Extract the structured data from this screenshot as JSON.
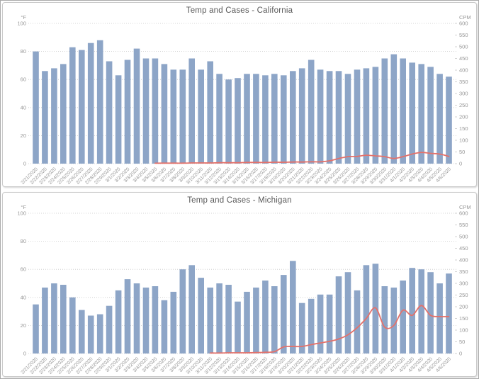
{
  "colors": {
    "bar": "#8da5c7",
    "line": "#e4716a",
    "grid": "#c8c8c8",
    "title": "#595959",
    "axis_label": "#969696",
    "panel_border": "#c9c9c9",
    "background": "#ffffff"
  },
  "chart_data": [
    {
      "type": "bar",
      "title": "Temp and Cases - California",
      "categories": [
        "2/21/2020",
        "2/22/2020",
        "2/23/2020",
        "2/24/2020",
        "2/25/2020",
        "2/26/2020",
        "2/27/2020",
        "2/28/2020",
        "2/29/2020",
        "3/1/2020",
        "3/2/2020",
        "3/3/2020",
        "3/4/2020",
        "3/5/2020",
        "3/6/2020",
        "3/7/2020",
        "3/8/2020",
        "3/9/2020",
        "3/10/2020",
        "3/11/2020",
        "3/12/2020",
        "3/13/2020",
        "3/14/2020",
        "3/15/2020",
        "3/16/2020",
        "3/17/2020",
        "3/18/2020",
        "3/19/2020",
        "3/20/2020",
        "3/21/2020",
        "3/22/2020",
        "3/23/2020",
        "3/24/2020",
        "3/25/2020",
        "3/26/2020",
        "3/27/2020",
        "3/28/2020",
        "3/29/2020",
        "3/30/2020",
        "3/31/2020",
        "4/1/2020",
        "4/2/2020",
        "4/3/2020",
        "4/4/2020",
        "4/5/2020",
        "4/6/2020"
      ],
      "series": [
        {
          "name": "Temperature",
          "type": "bar",
          "axis": "left",
          "values": [
            80,
            66,
            68,
            71,
            83,
            81,
            86,
            88,
            73,
            63,
            74,
            82,
            75,
            75,
            71,
            67,
            67,
            75,
            67,
            73,
            64,
            60,
            61,
            64,
            64,
            63,
            64,
            63,
            66,
            68,
            74,
            67,
            66,
            66,
            64,
            67,
            68,
            69,
            75,
            78,
            75,
            72,
            71,
            69,
            64,
            62
          ]
        },
        {
          "name": "Cases",
          "type": "line",
          "axis": "right",
          "values": [
            null,
            null,
            null,
            null,
            null,
            null,
            null,
            null,
            null,
            null,
            null,
            null,
            null,
            2,
            2,
            2,
            2,
            3,
            3,
            3,
            4,
            4,
            4,
            5,
            5,
            5,
            6,
            6,
            7,
            7,
            8,
            8,
            12,
            22,
            30,
            31,
            36,
            33,
            30,
            22,
            30,
            41,
            48,
            44,
            41,
            31
          ]
        }
      ],
      "left_axis": {
        "label": "°F",
        "range": [
          0,
          100
        ],
        "tick_step": 20
      },
      "right_axis": {
        "label": "CPM",
        "range": [
          0,
          600
        ],
        "tick_step": 50
      },
      "grid": "horizontal-dotted",
      "legend": "none"
    },
    {
      "type": "bar",
      "title": "Temp and Cases - Michigan",
      "categories": [
        "2/21/2020",
        "2/22/2020",
        "2/23/2020",
        "2/24/2020",
        "2/25/2020",
        "2/26/2020",
        "2/27/2020",
        "2/28/2020",
        "2/29/2020",
        "3/1/2020",
        "3/2/2020",
        "3/3/2020",
        "3/4/2020",
        "3/5/2020",
        "3/6/2020",
        "3/7/2020",
        "3/8/2020",
        "3/9/2020",
        "3/10/2020",
        "3/11/2020",
        "3/12/2020",
        "3/13/2020",
        "3/14/2020",
        "3/15/2020",
        "3/16/2020",
        "3/17/2020",
        "3/18/2020",
        "3/19/2020",
        "3/20/2020",
        "3/21/2020",
        "3/22/2020",
        "3/23/2020",
        "3/24/2020",
        "3/25/2020",
        "3/26/2020",
        "3/27/2020",
        "3/28/2020",
        "3/29/2020",
        "3/30/2020",
        "3/31/2020",
        "4/1/2020",
        "4/2/2020",
        "4/3/2020",
        "4/4/2020",
        "4/5/2020",
        "4/6/2020"
      ],
      "series": [
        {
          "name": "Temperature",
          "type": "bar",
          "axis": "left",
          "values": [
            35,
            47,
            50,
            49,
            40,
            31,
            27,
            28,
            34,
            45,
            53,
            50,
            47,
            48,
            38,
            44,
            60,
            63,
            54,
            47,
            50,
            49,
            37,
            44,
            47,
            52,
            48,
            56,
            66,
            36,
            39,
            42,
            42,
            55,
            58,
            45,
            63,
            64,
            48,
            47,
            52,
            61,
            60,
            58,
            50,
            57
          ]
        },
        {
          "name": "Cases",
          "type": "line",
          "axis": "right",
          "values": [
            null,
            null,
            null,
            null,
            null,
            null,
            null,
            null,
            null,
            null,
            null,
            null,
            null,
            null,
            null,
            null,
            null,
            null,
            null,
            2,
            2,
            3,
            3,
            3,
            4,
            5,
            8,
            28,
            30,
            30,
            38,
            45,
            52,
            62,
            80,
            110,
            150,
            195,
            113,
            120,
            185,
            163,
            205,
            163,
            158,
            158
          ]
        }
      ],
      "left_axis": {
        "label": "°F",
        "range": [
          0,
          100
        ],
        "tick_step": 20
      },
      "right_axis": {
        "label": "CPM",
        "range": [
          0,
          600
        ],
        "tick_step": 50
      },
      "grid": "horizontal-dotted",
      "legend": "none"
    }
  ]
}
